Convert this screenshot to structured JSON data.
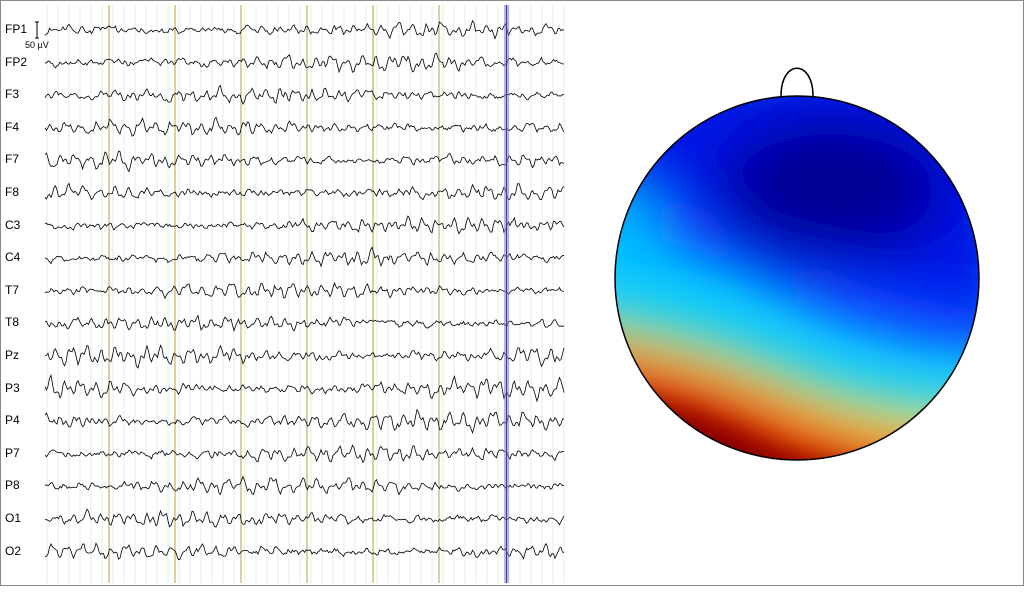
{
  "eeg": {
    "channels": [
      "FP1",
      "FP2",
      "F3",
      "F4",
      "F7",
      "F8",
      "C3",
      "C4",
      "T7",
      "T8",
      "Pz",
      "P3",
      "P4",
      "P7",
      "P8",
      "O1",
      "O2"
    ],
    "scale_label": "50 µV",
    "colors": {
      "trace": "#000000",
      "minor_grid": "#c9e6c9",
      "major_grid": "#b5a040",
      "cursor": "#7a7ad6"
    }
  },
  "topomap": {
    "colormap": "jet",
    "colors": {
      "outline": "#000000",
      "deep_blue": "#00008f",
      "red": "#d40000",
      "dark_red": "#800000"
    }
  }
}
